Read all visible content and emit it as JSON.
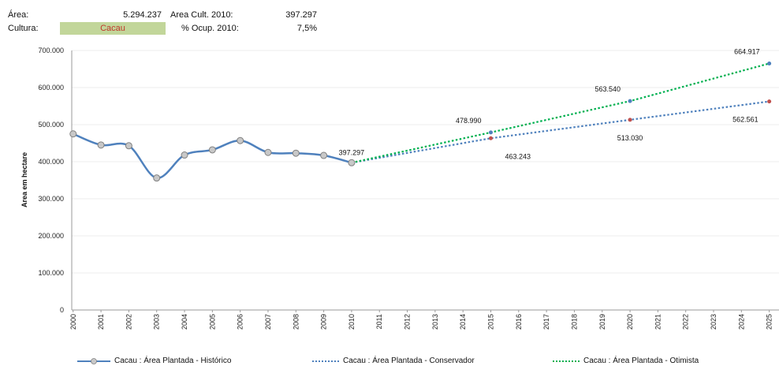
{
  "header": {
    "area_label": "Área:",
    "area_value": "5.294.237",
    "area_cult_label": "Area Cult. 2010:",
    "area_cult_value": "397.297",
    "cultura_label": "Cultura:",
    "cultura_value": "Cacau",
    "ocup_label": "% Ocup. 2010:",
    "ocup_value": "7,5%"
  },
  "chart_data": {
    "type": "line",
    "title": "",
    "xlabel": "",
    "ylabel": "Area em hectare",
    "ylim": [
      0,
      700000
    ],
    "yticks": [
      "0",
      "100.000",
      "200.000",
      "300.000",
      "400.000",
      "500.000",
      "600.000",
      "700.000"
    ],
    "categories": [
      "2000",
      "2001",
      "2002",
      "2003",
      "2004",
      "2005",
      "2006",
      "2007",
      "2008",
      "2009",
      "2010",
      "2011",
      "2012",
      "2013",
      "2014",
      "2015",
      "2016",
      "2017",
      "2018",
      "2019",
      "2020",
      "2021",
      "2022",
      "2023",
      "2024",
      "2025"
    ],
    "grid": true,
    "legend_position": "bottom",
    "series": [
      {
        "name": "Cacau :  Área Plantada - Histórico",
        "color": "#4f81bd",
        "style": "solid-markers",
        "points": [
          [
            2000,
            475000
          ],
          [
            2001,
            445000
          ],
          [
            2002,
            443000
          ],
          [
            2003,
            356000
          ],
          [
            2004,
            418000
          ],
          [
            2005,
            432000
          ],
          [
            2006,
            457000
          ],
          [
            2007,
            425000
          ],
          [
            2008,
            423000
          ],
          [
            2009,
            417000
          ],
          [
            2010,
            397297
          ]
        ]
      },
      {
        "name": "Cacau :  Área Plantada - Conservador",
        "color": "#4f81bd",
        "style": "dotted",
        "points": [
          [
            2010,
            397297
          ],
          [
            2015,
            463243
          ],
          [
            2020,
            513030
          ],
          [
            2025,
            562561
          ]
        ]
      },
      {
        "name": "Cacau :  Área Plantada - Otimista",
        "color": "#00b050",
        "style": "dotted",
        "points": [
          [
            2010,
            397297
          ],
          [
            2015,
            478990
          ],
          [
            2020,
            563540
          ],
          [
            2025,
            664917
          ]
        ]
      }
    ],
    "annotations": [
      {
        "text": "397.297",
        "x": 2010,
        "y": 397297,
        "pos": "above"
      },
      {
        "text": "478.990",
        "x": 2015,
        "y": 478990,
        "pos": "above-left"
      },
      {
        "text": "463.243",
        "x": 2015,
        "y": 463243,
        "pos": "below-right"
      },
      {
        "text": "563.540",
        "x": 2020,
        "y": 563540,
        "pos": "above-left"
      },
      {
        "text": "513.030",
        "x": 2020,
        "y": 513030,
        "pos": "below"
      },
      {
        "text": "664.917",
        "x": 2025,
        "y": 664917,
        "pos": "above-left"
      },
      {
        "text": "562.561",
        "x": 2025,
        "y": 562561,
        "pos": "below-left"
      }
    ]
  }
}
